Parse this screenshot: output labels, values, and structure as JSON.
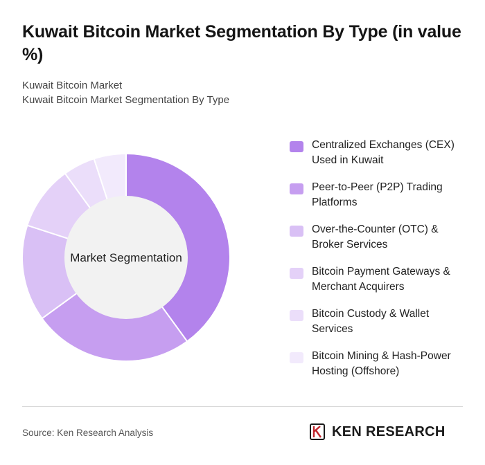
{
  "header": {
    "title": "Kuwait Bitcoin Market Segmentation By Type (in value %)",
    "subtitle_line1": "Kuwait Bitcoin Market",
    "subtitle_line2": "Kuwait Bitcoin Market Segmentation By Type"
  },
  "footer": {
    "source": "Source: Ken Research Analysis",
    "logo_text": "KEN RESEARCH"
  },
  "chart_data": {
    "type": "pie",
    "variant": "donut",
    "center_label": "Market Segmentation",
    "categories": [
      "Centralized Exchanges (CEX) Used in Kuwait",
      "Peer-to-Peer (P2P) Trading Platforms",
      "Over-the-Counter (OTC) & Broker Services",
      "Bitcoin Payment Gateways & Merchant Acquirers",
      "Bitcoin Custody & Wallet Services",
      "Bitcoin Mining & Hash-Power Hosting (Offshore)"
    ],
    "values": [
      40,
      25,
      15,
      10,
      5,
      5
    ],
    "colors": [
      "#b383ec",
      "#c69ef0",
      "#d9c0f5",
      "#e4d1f8",
      "#ebdefa",
      "#f2eafc"
    ],
    "legend_position": "right"
  }
}
